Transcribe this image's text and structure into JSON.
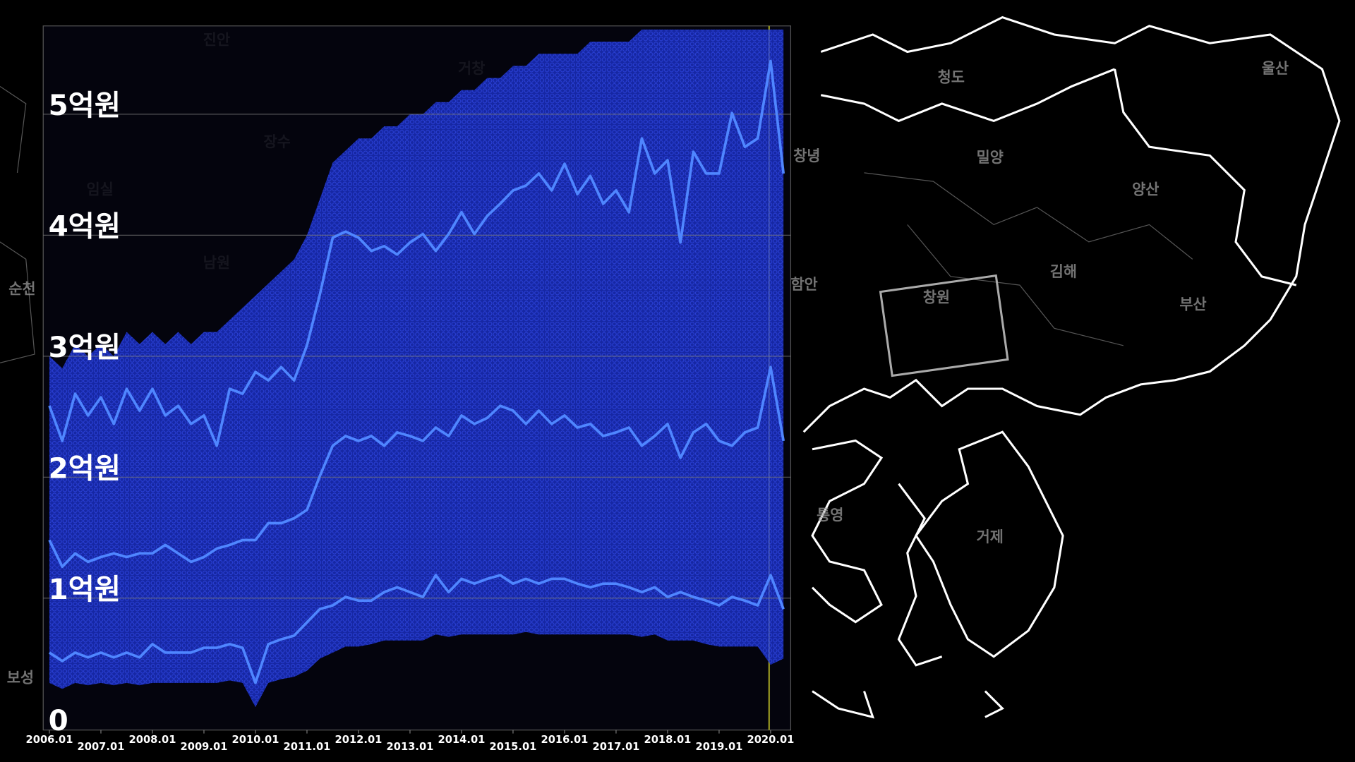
{
  "chart_data": {
    "type": "line",
    "x": [
      2006,
      2006.25,
      2006.5,
      2006.75,
      2007,
      2007.25,
      2007.5,
      2007.75,
      2008,
      2008.25,
      2008.5,
      2008.75,
      2009,
      2009.25,
      2009.5,
      2009.75,
      2010,
      2010.25,
      2010.5,
      2010.75,
      2011,
      2011.25,
      2011.5,
      2011.75,
      2012,
      2012.25,
      2012.5,
      2012.75,
      2013,
      2013.25,
      2013.5,
      2013.75,
      2014,
      2014.25,
      2014.5,
      2014.75,
      2015,
      2015.25,
      2015.5,
      2015.75,
      2016,
      2016.25,
      2016.5,
      2016.75,
      2017,
      2017.25,
      2017.5,
      2017.75,
      2018,
      2018.25,
      2018.5,
      2018.75,
      2019,
      2019.25,
      2019.5,
      2019.75,
      2020,
      2020.25
    ],
    "band": {
      "color": "#1c33d6",
      "high": [
        3.0,
        2.9,
        3.1,
        3.0,
        3.1,
        3.0,
        3.2,
        3.1,
        3.2,
        3.1,
        3.2,
        3.1,
        3.2,
        3.2,
        3.3,
        3.4,
        3.5,
        3.6,
        3.7,
        3.8,
        4.0,
        4.3,
        4.6,
        4.7,
        4.8,
        4.8,
        4.9,
        4.9,
        5.0,
        5.0,
        5.1,
        5.1,
        5.2,
        5.2,
        5.3,
        5.3,
        5.4,
        5.4,
        5.5,
        5.5,
        5.5,
        5.5,
        5.6,
        5.6,
        5.6,
        5.6,
        5.7,
        5.7,
        5.7,
        5.7,
        5.7,
        5.7,
        5.7,
        5.7,
        5.7,
        5.7,
        5.7,
        5.7
      ],
      "low": [
        0.3,
        0.25,
        0.3,
        0.28,
        0.3,
        0.28,
        0.3,
        0.28,
        0.3,
        0.3,
        0.3,
        0.3,
        0.3,
        0.3,
        0.32,
        0.3,
        0.1,
        0.3,
        0.33,
        0.35,
        0.4,
        0.5,
        0.55,
        0.6,
        0.6,
        0.62,
        0.65,
        0.65,
        0.65,
        0.65,
        0.7,
        0.68,
        0.7,
        0.7,
        0.7,
        0.7,
        0.7,
        0.72,
        0.7,
        0.7,
        0.7,
        0.7,
        0.7,
        0.7,
        0.7,
        0.7,
        0.68,
        0.7,
        0.65,
        0.65,
        0.65,
        0.62,
        0.6,
        0.6,
        0.6,
        0.6,
        0.45,
        0.5
      ]
    },
    "series": [
      {
        "color": "#4f86ff",
        "values": [
          2.59,
          2.3,
          2.69,
          2.51,
          2.66,
          2.44,
          2.73,
          2.55,
          2.73,
          2.51,
          2.59,
          2.44,
          2.51,
          2.26,
          2.73,
          2.69,
          2.87,
          2.8,
          2.91,
          2.8,
          3.09,
          3.51,
          3.98,
          4.03,
          3.98,
          3.87,
          3.91,
          3.84,
          3.94,
          4.01,
          3.87,
          4.01,
          4.19,
          4.01,
          4.16,
          4.26,
          4.37,
          4.41,
          4.51,
          4.37,
          4.59,
          4.34,
          4.49,
          4.26,
          4.37,
          4.19,
          4.8,
          4.51,
          4.62,
          3.94,
          4.69,
          4.51,
          4.51,
          5.01,
          4.73,
          4.8,
          5.44,
          4.51
        ]
      },
      {
        "color": "#4f86ff",
        "values": [
          1.48,
          1.26,
          1.37,
          1.3,
          1.34,
          1.37,
          1.34,
          1.37,
          1.37,
          1.44,
          1.37,
          1.3,
          1.34,
          1.41,
          1.44,
          1.48,
          1.48,
          1.62,
          1.62,
          1.66,
          1.73,
          2.01,
          2.26,
          2.34,
          2.3,
          2.34,
          2.26,
          2.37,
          2.34,
          2.3,
          2.41,
          2.34,
          2.51,
          2.44,
          2.49,
          2.59,
          2.55,
          2.44,
          2.55,
          2.44,
          2.51,
          2.41,
          2.44,
          2.34,
          2.37,
          2.41,
          2.26,
          2.34,
          2.44,
          2.16,
          2.37,
          2.44,
          2.3,
          2.26,
          2.37,
          2.41,
          2.91,
          2.3
        ]
      },
      {
        "color": "#4f86ff",
        "values": [
          0.55,
          0.48,
          0.55,
          0.51,
          0.55,
          0.51,
          0.55,
          0.51,
          0.62,
          0.55,
          0.55,
          0.55,
          0.59,
          0.59,
          0.62,
          0.59,
          0.3,
          0.62,
          0.66,
          0.69,
          0.8,
          0.91,
          0.94,
          1.01,
          0.98,
          0.98,
          1.05,
          1.09,
          1.05,
          1.01,
          1.19,
          1.05,
          1.16,
          1.12,
          1.16,
          1.19,
          1.12,
          1.16,
          1.12,
          1.16,
          1.16,
          1.12,
          1.09,
          1.12,
          1.12,
          1.09,
          1.05,
          1.09,
          1.01,
          1.05,
          1.01,
          0.98,
          0.94,
          1.01,
          0.98,
          0.94,
          1.19,
          0.91
        ]
      }
    ],
    "xlim": [
      2005.88,
      2020.39
    ],
    "xticks": [
      {
        "value": 2006,
        "label": "2006.01"
      },
      {
        "value": 2007,
        "label": "2007.01"
      },
      {
        "value": 2008,
        "label": "2008.01"
      },
      {
        "value": 2009,
        "label": "2009.01"
      },
      {
        "value": 2010,
        "label": "2010.01"
      },
      {
        "value": 2011,
        "label": "2011.01"
      },
      {
        "value": 2012,
        "label": "2012.01"
      },
      {
        "value": 2013,
        "label": "2013.01"
      },
      {
        "value": 2014,
        "label": "2014.01"
      },
      {
        "value": 2015,
        "label": "2015.01"
      },
      {
        "value": 2016,
        "label": "2016.01"
      },
      {
        "value": 2017,
        "label": "2017.01"
      },
      {
        "value": 2018,
        "label": "2018.01"
      },
      {
        "value": 2019,
        "label": "2019.01"
      },
      {
        "value": 2020,
        "label": "2020.01"
      }
    ],
    "ylim": [
      -0.09,
      5.73
    ],
    "yticks": [
      0,
      {
        "value": 1,
        "label": "1억원"
      },
      {
        "value": 2,
        "label": "2억원"
      },
      {
        "value": 3,
        "label": "3억원"
      },
      {
        "value": 4,
        "label": "4억원"
      },
      {
        "value": 5,
        "label": "5억원"
      }
    ],
    "grid": true
  },
  "map_labels": [
    "청도",
    "밀양",
    "양산",
    "김해",
    "창원",
    "거제",
    "통영",
    "울산",
    "창녕",
    "함안",
    "부산",
    "보성",
    "순천",
    "남원",
    "장수",
    "임실",
    "거창",
    "진안"
  ]
}
